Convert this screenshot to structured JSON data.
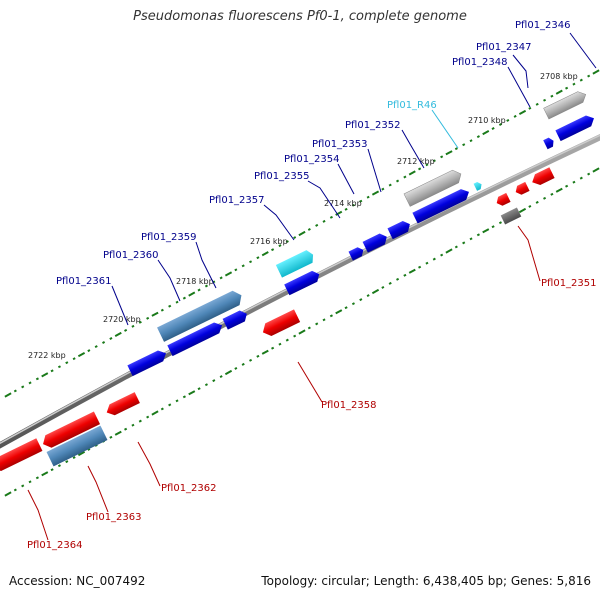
{
  "title": "Pseudomonas fluorescens Pf0-1, complete genome",
  "accession": "Accession: NC_007492",
  "summary": "Topology: circular; Length: 6,438,405 bp; Genes: 5,816",
  "colors": {
    "forward_gene": "#0000dd",
    "reverse_gene": "#ee0000",
    "ncrna": "#22ccdd",
    "pseudo": "#aaaaaa",
    "steelblue": "#4f87b8",
    "label_forward": "#00008b",
    "label_reverse": "#b00000",
    "label_ncrna": "#33bbdd",
    "tick_green": "#1a7a1a"
  },
  "ticks": [
    "2708 kbp",
    "2710 kbp",
    "2712 kbp",
    "2714 kbp",
    "2716 kbp",
    "2718 kbp",
    "2720 kbp",
    "2722 kbp"
  ],
  "labels": {
    "g2346": "Pfl01_2346",
    "g2347": "Pfl01_2347",
    "g2348": "Pfl01_2348",
    "r46": "Pfl01_R46",
    "g2352": "Pfl01_2352",
    "g2353": "Pfl01_2353",
    "g2354": "Pfl01_2354",
    "g2355": "Pfl01_2355",
    "g2357": "Pfl01_2357",
    "g2359": "Pfl01_2359",
    "g2360": "Pfl01_2360",
    "g2361": "Pfl01_2361",
    "g2351": "Pfl01_2351",
    "g2358": "Pfl01_2358",
    "g2362": "Pfl01_2362",
    "g2363": "Pfl01_2363",
    "g2364": "Pfl01_2364"
  }
}
